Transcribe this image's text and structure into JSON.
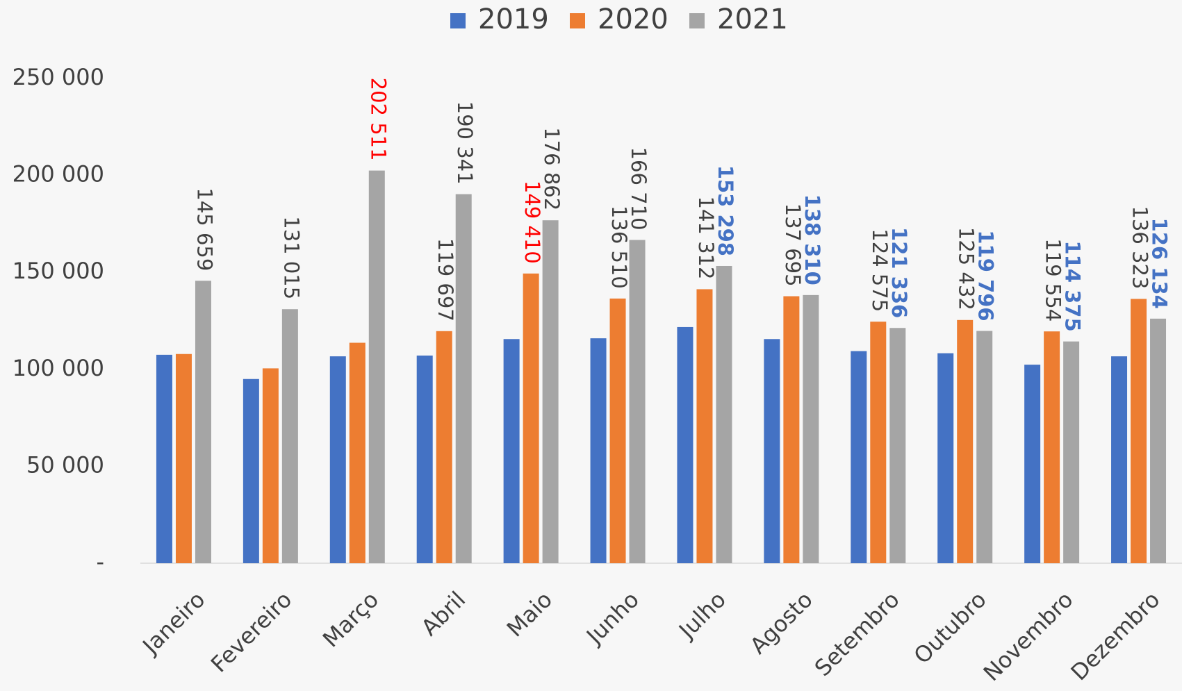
{
  "chart_data": {
    "type": "bar",
    "categories": [
      "Janeiro",
      "Fevereiro",
      "Março",
      "Abril",
      "Maio",
      "Junho",
      "Julho",
      "Agosto",
      "Setembro",
      "Outubro",
      "Novembro",
      "Dezembro"
    ],
    "series": [
      {
        "name": "2019",
        "color": "#4472c4",
        "values": [
          107500,
          95000,
          106700,
          107100,
          115600,
          116000,
          121800,
          115600,
          109400,
          108300,
          102400,
          106700
        ]
      },
      {
        "name": "2020",
        "color": "#ed7d31",
        "values": [
          107900,
          100500,
          113700,
          119697,
          149410,
          136510,
          141312,
          137695,
          124575,
          125432,
          119554,
          136323
        ],
        "value_labels": [
          null,
          null,
          null,
          "119 697",
          "149 410",
          "136 510",
          "141 312",
          "137 695",
          "124 575",
          "125 432",
          "119 554",
          "136 323"
        ],
        "value_label_colors": [
          "#404040",
          "#404040",
          "#404040",
          "#404040",
          "#ff0000",
          "#404040",
          "#404040",
          "#404040",
          "#404040",
          "#404040",
          "#404040",
          "#404040"
        ],
        "value_label_bold": [
          false,
          false,
          false,
          false,
          false,
          false,
          false,
          false,
          false,
          false,
          false,
          false
        ]
      },
      {
        "name": "2021",
        "color": "#a5a5a5",
        "values": [
          145659,
          131015,
          202511,
          190341,
          176862,
          166710,
          153298,
          138310,
          121336,
          119796,
          114375,
          126134
        ],
        "value_labels": [
          "145 659",
          "131 015",
          "202 511",
          "190 341",
          "176 862",
          "166 710",
          "153 298",
          "138 310",
          "121 336",
          "119 796",
          "114 375",
          "126 134"
        ],
        "value_label_colors": [
          "#404040",
          "#404040",
          "#ff0000",
          "#404040",
          "#404040",
          "#404040",
          "#4472c4",
          "#4472c4",
          "#4472c4",
          "#4472c4",
          "#4472c4",
          "#4472c4"
        ],
        "value_label_bold": [
          false,
          false,
          false,
          false,
          false,
          false,
          true,
          true,
          true,
          true,
          true,
          true
        ]
      }
    ],
    "ylim": [
      0,
      250000
    ],
    "yticks": [
      {
        "value": 0,
        "label": "-"
      },
      {
        "value": 50000,
        "label": "50 000"
      },
      {
        "value": 100000,
        "label": "100 000"
      },
      {
        "value": 150000,
        "label": "150 000"
      },
      {
        "value": 200000,
        "label": "200 000"
      },
      {
        "value": 250000,
        "label": "250 000"
      }
    ],
    "grid": false,
    "legend": "top"
  }
}
